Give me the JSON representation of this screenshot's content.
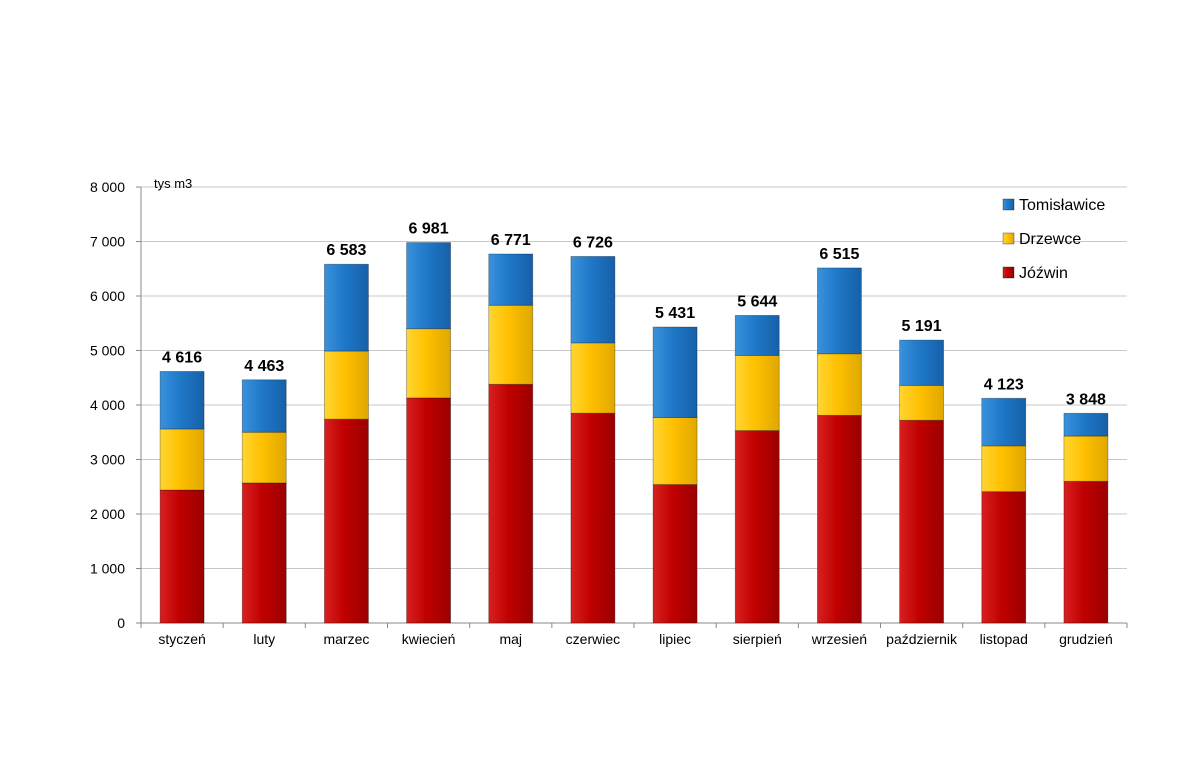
{
  "chart_data": {
    "type": "bar",
    "stacked": true,
    "unit_label": "tys m3",
    "categories": [
      "styczeń",
      "luty",
      "marzec",
      "kwiecień",
      "maj",
      "czerwiec",
      "lipiec",
      "sierpień",
      "wrzesień",
      "październik",
      "listopad",
      "grudzień"
    ],
    "series": [
      {
        "name": "Jóźwin",
        "color": "#c00000",
        "values": [
          2440,
          2570,
          3740,
          4130,
          4380,
          3850,
          2540,
          3530,
          3810,
          3720,
          2410,
          2600
        ]
      },
      {
        "name": "Drzewce",
        "color": "#ffc000",
        "values": [
          1120,
          930,
          1250,
          1270,
          1450,
          1290,
          1230,
          1380,
          1130,
          640,
          840,
          830
        ]
      },
      {
        "name": "Tomisławice",
        "color": "#1f78c8",
        "values": [
          1056,
          963,
          1593,
          1581,
          941,
          1586,
          1661,
          734,
          1575,
          831,
          873,
          418
        ]
      }
    ],
    "totals": [
      "4 616",
      "4 463",
      "6 583",
      "6 981",
      "6 771",
      "6 726",
      "5 431",
      "5 644",
      "6 515",
      "5 191",
      "4 123",
      "3 848"
    ],
    "ylim": [
      0,
      8000
    ],
    "yticks": [
      {
        "value": 0,
        "label": "0"
      },
      {
        "value": 1000,
        "label": "1 000"
      },
      {
        "value": 2000,
        "label": "2 000"
      },
      {
        "value": 3000,
        "label": "3 000"
      },
      {
        "value": 4000,
        "label": "4 000"
      },
      {
        "value": 5000,
        "label": "5 000"
      },
      {
        "value": 6000,
        "label": "6 000"
      },
      {
        "value": 7000,
        "label": "7 000"
      },
      {
        "value": 8000,
        "label": "8 000"
      }
    ],
    "grid": true,
    "legend_position": "top-right",
    "legend": [
      {
        "name": "Tomisławice",
        "color": "#1f78c8"
      },
      {
        "name": "Drzewce",
        "color": "#ffc000"
      },
      {
        "name": "Jóźwin",
        "color": "#c00000"
      }
    ]
  }
}
